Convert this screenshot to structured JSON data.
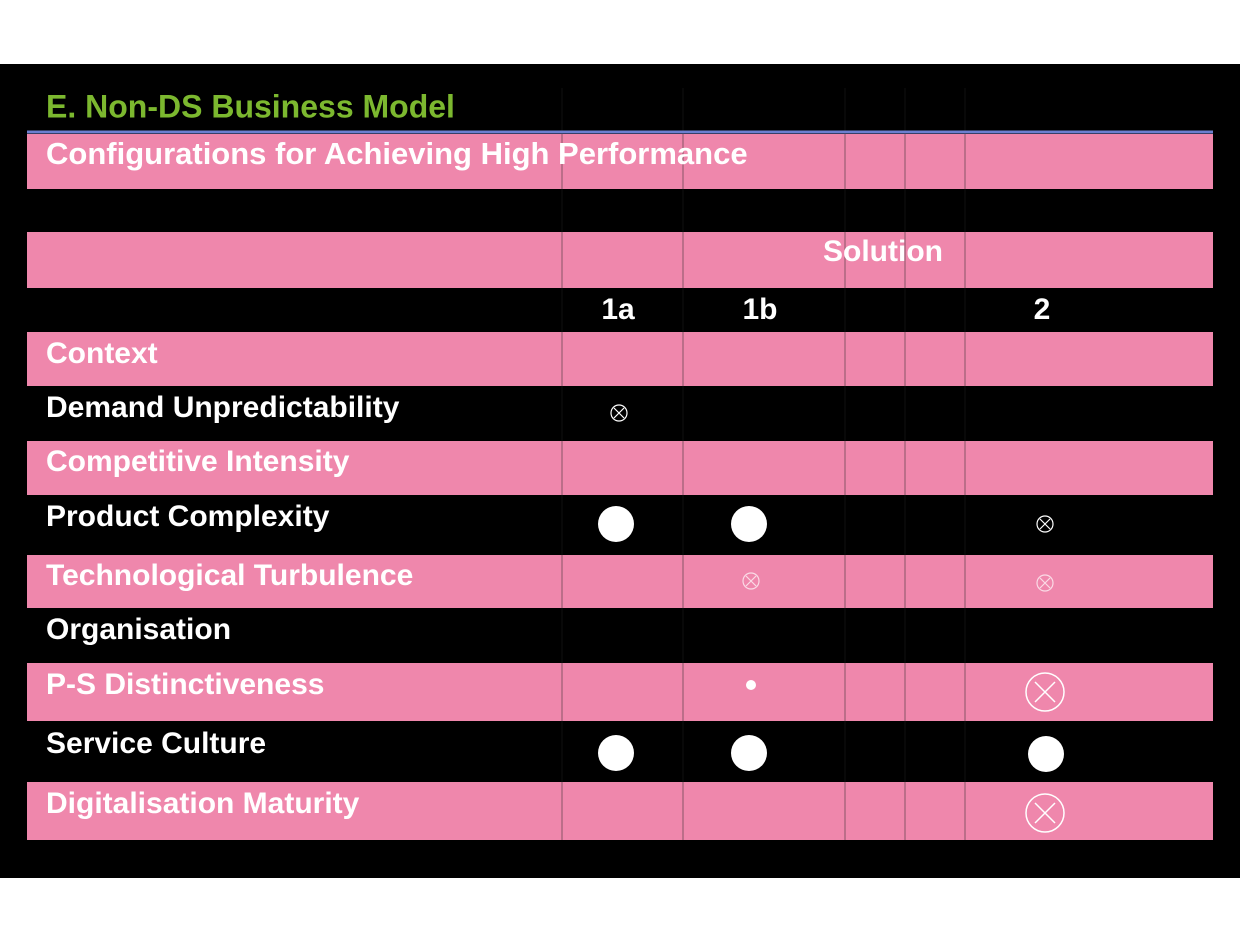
{
  "header": {
    "title": "E. Non-DS Business Model",
    "subtitle": "Configurations for Achieving High Performance"
  },
  "table": {
    "group_header": "Solution",
    "columns": [
      "1a",
      "1b",
      "2"
    ],
    "rows": [
      "Context",
      "Demand Unpredictability",
      "Competitive Intensity",
      "Product Complexity",
      "Technological Turbulence",
      "Organisation",
      "P-S Distinctiveness",
      "Service Culture",
      "Digitalisation Maturity"
    ]
  }
}
